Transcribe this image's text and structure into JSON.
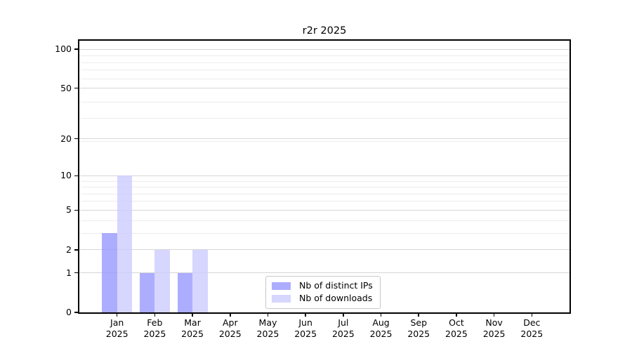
{
  "chart_data": {
    "type": "bar",
    "title": "r2r 2025",
    "categories": [
      "Jan",
      "Feb",
      "Mar",
      "Apr",
      "May",
      "Jun",
      "Jul",
      "Aug",
      "Sep",
      "Oct",
      "Nov",
      "Dec"
    ],
    "year_label": "2025",
    "series": [
      {
        "name": "Nb of distinct IPs",
        "color": "#9999ff",
        "opacity": 0.8,
        "values": [
          3,
          1,
          1,
          0,
          0,
          0,
          0,
          0,
          0,
          0,
          0,
          0
        ]
      },
      {
        "name": "Nb of downloads",
        "color": "#ccccff",
        "opacity": 0.8,
        "values": [
          10,
          2,
          2,
          0,
          0,
          0,
          0,
          0,
          0,
          0,
          0,
          0
        ]
      }
    ],
    "y_axis": {
      "scale": "log1p",
      "tick_values": [
        0,
        1,
        2,
        5,
        10,
        20,
        50,
        100
      ],
      "minor_gridline_values": [
        3,
        4,
        6,
        7,
        8,
        9,
        19,
        29,
        39,
        59,
        69,
        79,
        89
      ],
      "max": 118
    },
    "grid": true,
    "legend_position": "inside-bottom-center"
  },
  "colors": {
    "major_grid": "#d6d6d6",
    "minor_grid": "#ececec",
    "axis": "#000000",
    "legend_border": "#c8c8c8"
  }
}
